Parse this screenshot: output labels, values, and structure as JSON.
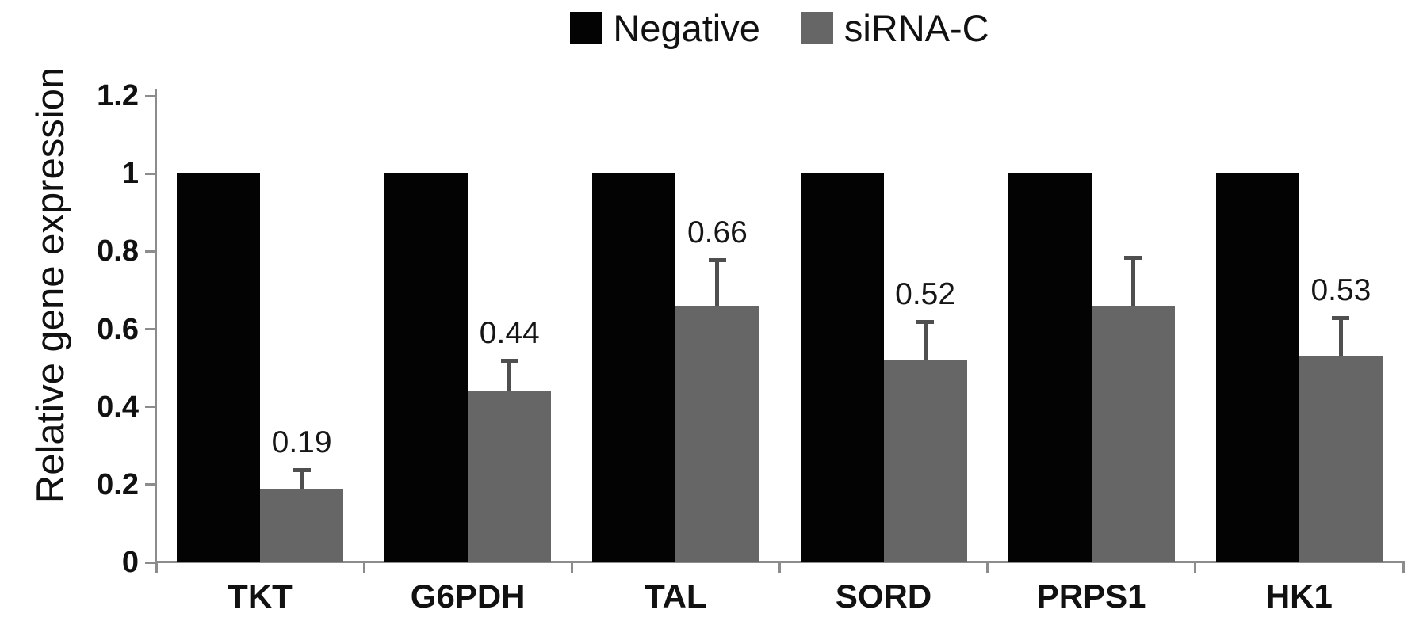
{
  "legend": {
    "negative_label": "Negative",
    "sirna_label": "siRNA-C"
  },
  "chart_data": {
    "type": "bar",
    "title": "",
    "xlabel": "",
    "ylabel": "Relative gene expression",
    "ylim": [
      0,
      1.2
    ],
    "ytick_labels": [
      "0",
      "0.2",
      "0.4",
      "0.6",
      "0.8",
      "1",
      "1.2"
    ],
    "yticks": [
      0,
      0.2,
      0.4,
      0.6,
      0.8,
      1,
      1.2
    ],
    "grid": false,
    "legend_position": "top-center",
    "categories": [
      "TKT",
      "G6PDH",
      "TAL",
      "SORD",
      "PRPS1",
      "HK1"
    ],
    "series": [
      {
        "name": "Negative",
        "color": "#030303",
        "values": [
          1,
          1,
          1,
          1,
          1,
          1
        ],
        "errors": [
          0,
          0,
          0,
          0,
          0,
          0
        ],
        "labels": [
          "",
          "",
          "",
          "",
          "",
          ""
        ]
      },
      {
        "name": "siRNA-C",
        "color": "#666666",
        "values": [
          0.19,
          0.44,
          0.66,
          0.52,
          0.66,
          0.53
        ],
        "errors": [
          0.045,
          0.075,
          0.115,
          0.095,
          0.12,
          0.095
        ],
        "labels": [
          "0.19",
          "0.44",
          "0.66",
          "0.52",
          "",
          "0.53"
        ]
      }
    ],
    "colors": {
      "axis": "#8c8c8c",
      "error_bar": "#4f4f4f",
      "negative_bar": "#030303",
      "sirna_bar": "#666666",
      "text": "#111111"
    }
  }
}
